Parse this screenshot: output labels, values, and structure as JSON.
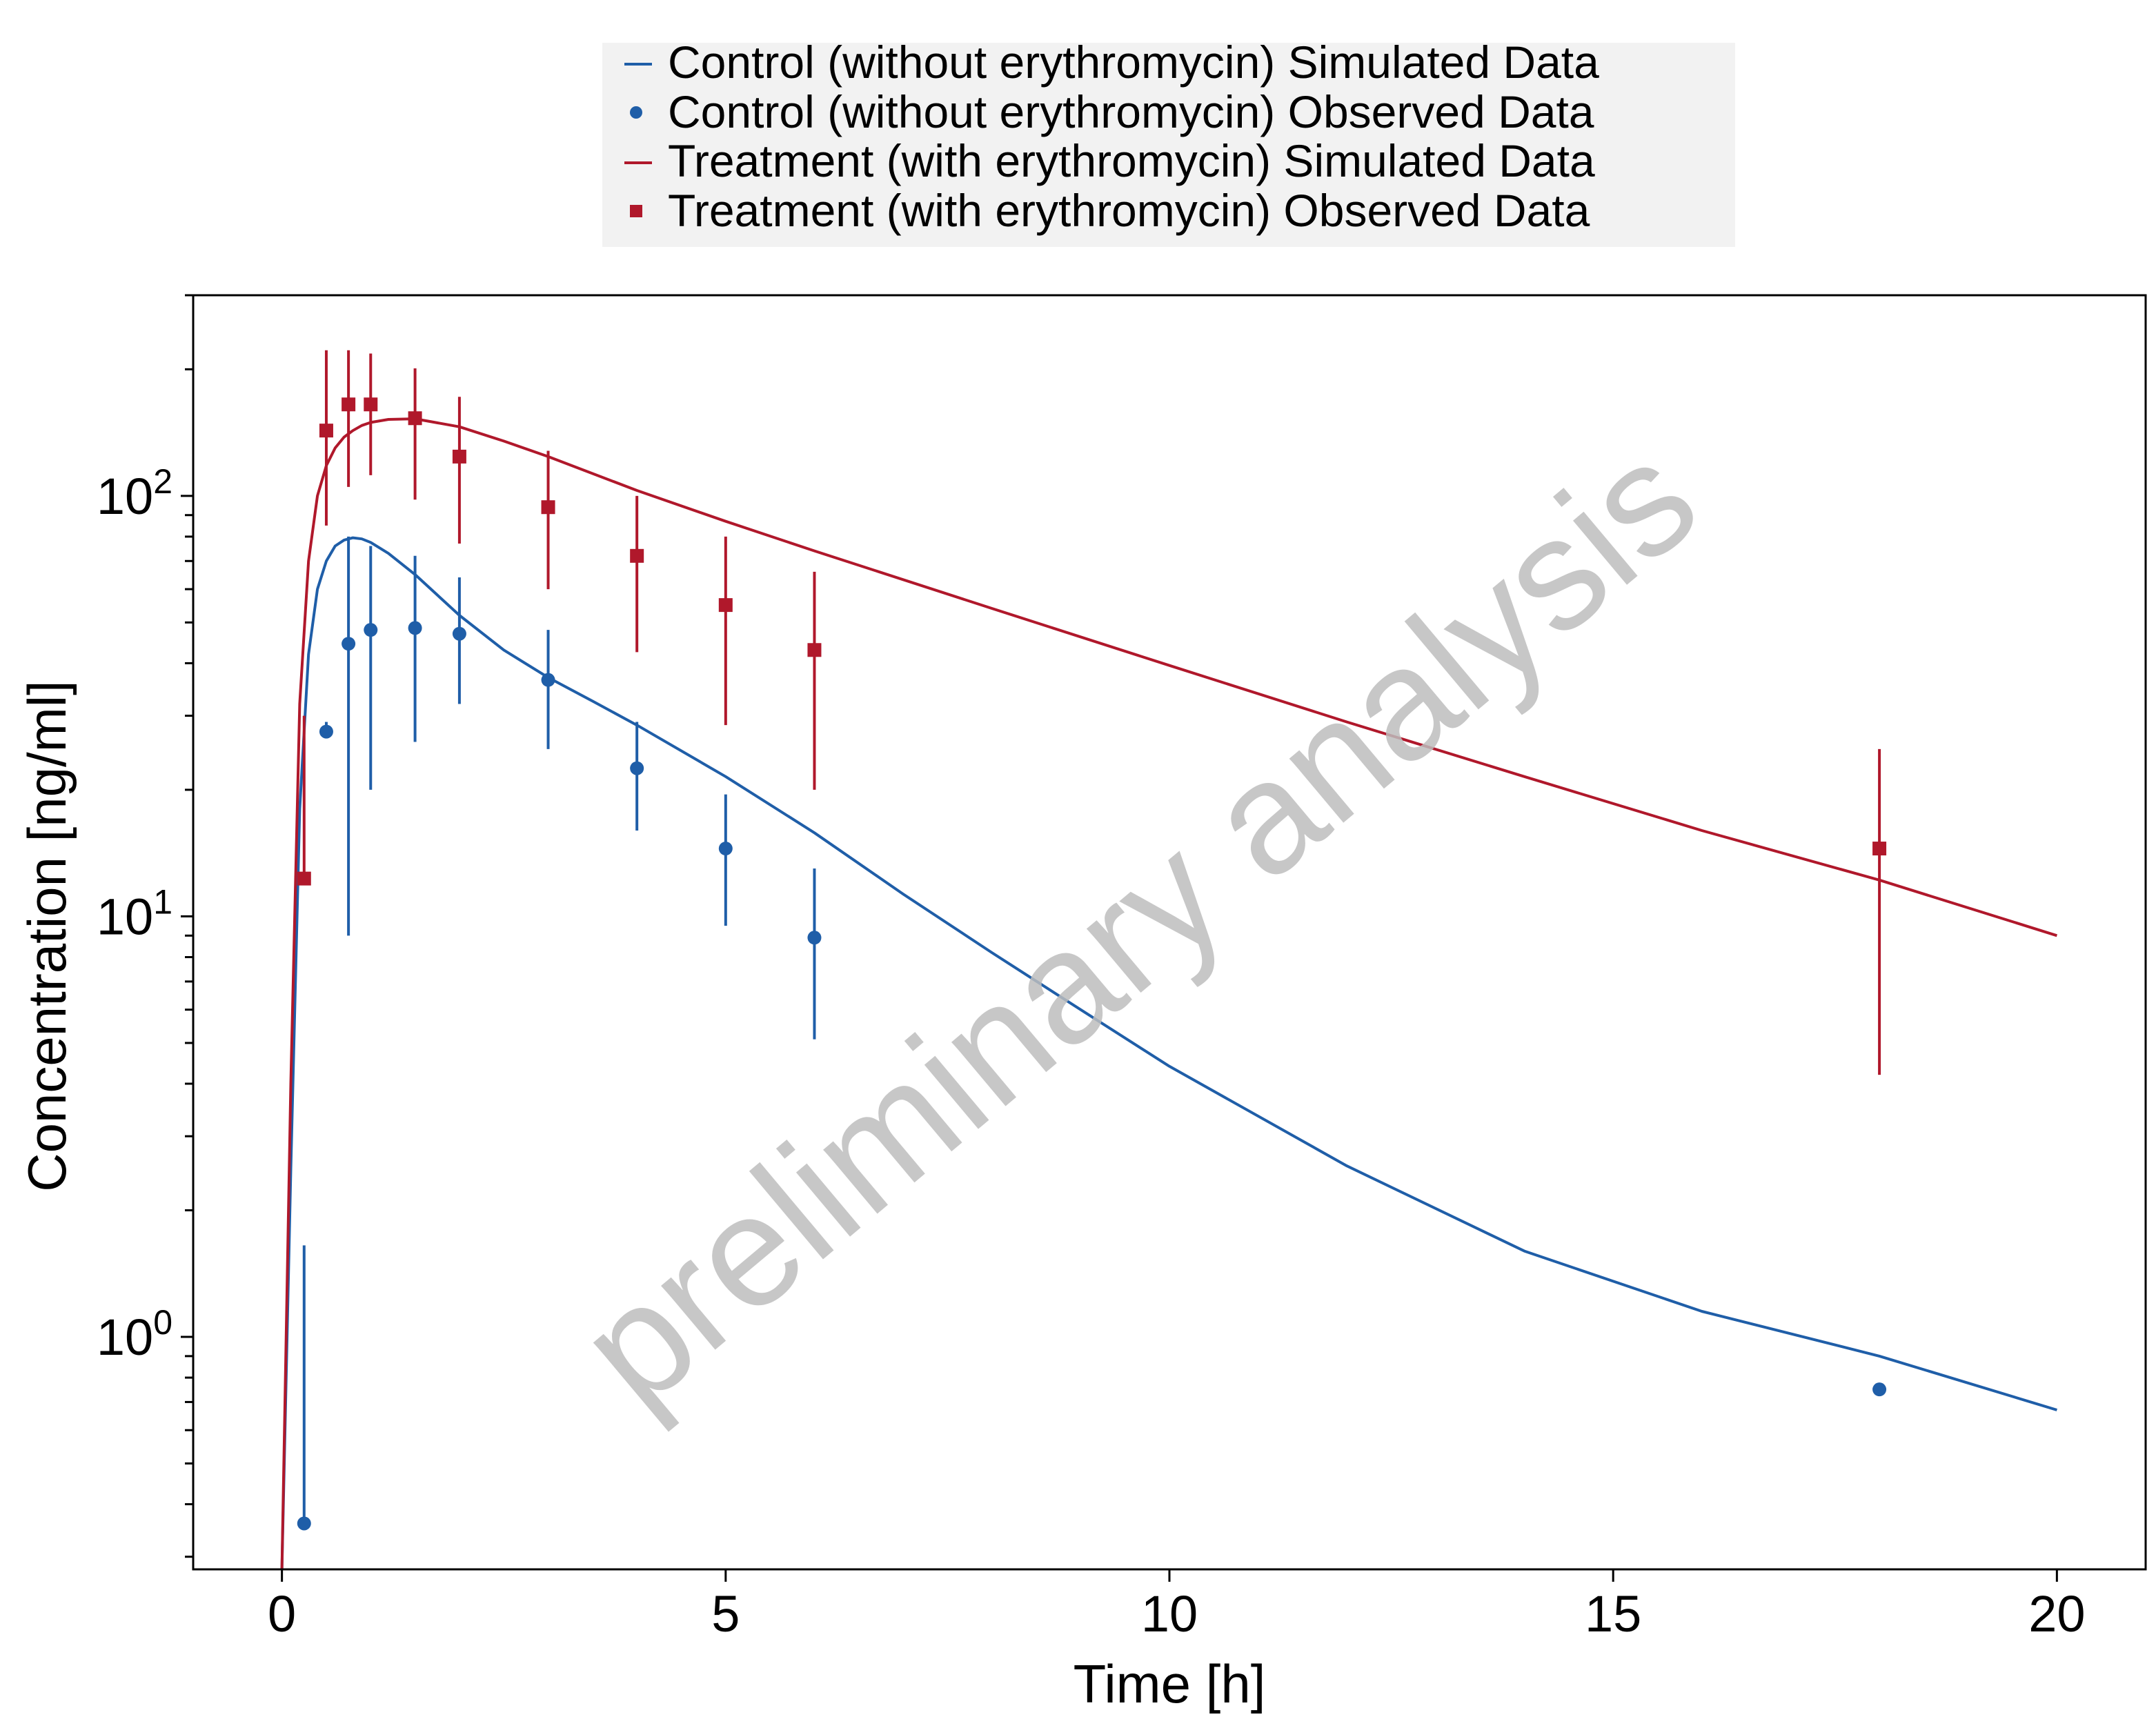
{
  "chart_data": {
    "type": "line",
    "title": "",
    "xlabel": "Time [h]",
    "ylabel": "Concentration [ng/ml]",
    "xlim": [
      -1,
      21
    ],
    "ylim": [
      0.28,
      300
    ],
    "y_scale": "log",
    "x_ticks": [
      0,
      5,
      10,
      15,
      20
    ],
    "y_major_ticks": [
      1,
      10,
      100
    ],
    "y_major_tick_labels": [
      {
        "base": "10",
        "exp": "0"
      },
      {
        "base": "10",
        "exp": "1"
      },
      {
        "base": "10",
        "exp": "2"
      }
    ],
    "grid": false,
    "legend_position": "top",
    "watermark": "preliminary analysis",
    "series": [
      {
        "name": "Control (without erythromycin) Simulated Data",
        "kind": "line",
        "color": "#1f5ea8",
        "x": [
          0,
          0.1,
          0.2,
          0.3,
          0.4,
          0.5,
          0.6,
          0.7,
          0.8,
          0.9,
          1.0,
          1.2,
          1.5,
          2.0,
          2.5,
          3.0,
          3.5,
          4.0,
          5.0,
          6.0,
          7.0,
          8.0,
          9.0,
          10.0,
          12.0,
          14.0,
          16.0,
          18.0,
          20.0
        ],
        "y": [
          0.28,
          2.5,
          18,
          42,
          60,
          70,
          76,
          78.5,
          79.5,
          79,
          77.5,
          73,
          65,
          52,
          43,
          37,
          32.5,
          28.5,
          21.5,
          15.8,
          11.3,
          8.2,
          6.0,
          4.4,
          2.55,
          1.6,
          1.15,
          0.9,
          0.67
        ]
      },
      {
        "name": "Control (without erythromycin) Observed Data",
        "kind": "points",
        "marker": "circle",
        "color": "#1f5ea8",
        "x": [
          0.25,
          0.5,
          0.75,
          1.0,
          1.5,
          2.0,
          3.0,
          4.0,
          5.0,
          6.0,
          18.0
        ],
        "y": [
          0.36,
          27.5,
          44.5,
          48,
          48.5,
          47,
          36.5,
          22.5,
          14.5,
          8.9,
          0.75
        ],
        "y_lower": [
          0.36,
          27.5,
          9,
          20,
          26,
          32,
          25,
          16,
          9.5,
          5.1,
          null
        ],
        "y_upper": [
          1.65,
          29,
          80,
          76,
          72,
          64,
          48,
          29,
          19.5,
          13,
          null
        ]
      },
      {
        "name": "Treatment (with erythromycin) Simulated Data",
        "kind": "line",
        "color": "#b0182b",
        "x": [
          0,
          0.1,
          0.2,
          0.3,
          0.4,
          0.5,
          0.6,
          0.7,
          0.8,
          0.9,
          1.0,
          1.2,
          1.5,
          2.0,
          2.5,
          3.0,
          4.0,
          5.0,
          6.0,
          8.0,
          10.0,
          12.0,
          14.0,
          16.0,
          18.0,
          20.0
        ],
        "y": [
          0.28,
          4,
          32,
          70,
          100,
          118,
          130,
          138,
          143,
          147,
          149.5,
          152,
          152.5,
          146,
          135,
          124,
          103,
          87,
          74,
          54,
          39.5,
          29,
          21.5,
          16,
          12.2,
          9
        ]
      },
      {
        "name": "Treatment (with erythromycin) Observed Data",
        "kind": "points",
        "marker": "square",
        "color": "#b0182b",
        "x": [
          0.25,
          0.5,
          0.75,
          1.0,
          1.5,
          2.0,
          3.0,
          4.0,
          5.0,
          6.0,
          18.0
        ],
        "y": [
          12.3,
          143,
          165,
          165,
          153,
          124,
          94,
          72,
          55,
          43,
          14.5
        ],
        "y_lower": [
          12.3,
          85,
          105,
          112,
          98,
          77,
          60,
          42.5,
          28.5,
          20,
          4.2
        ],
        "y_upper": [
          30,
          222,
          222,
          218,
          201,
          172,
          128,
          100,
          80,
          66,
          25
        ]
      }
    ]
  }
}
